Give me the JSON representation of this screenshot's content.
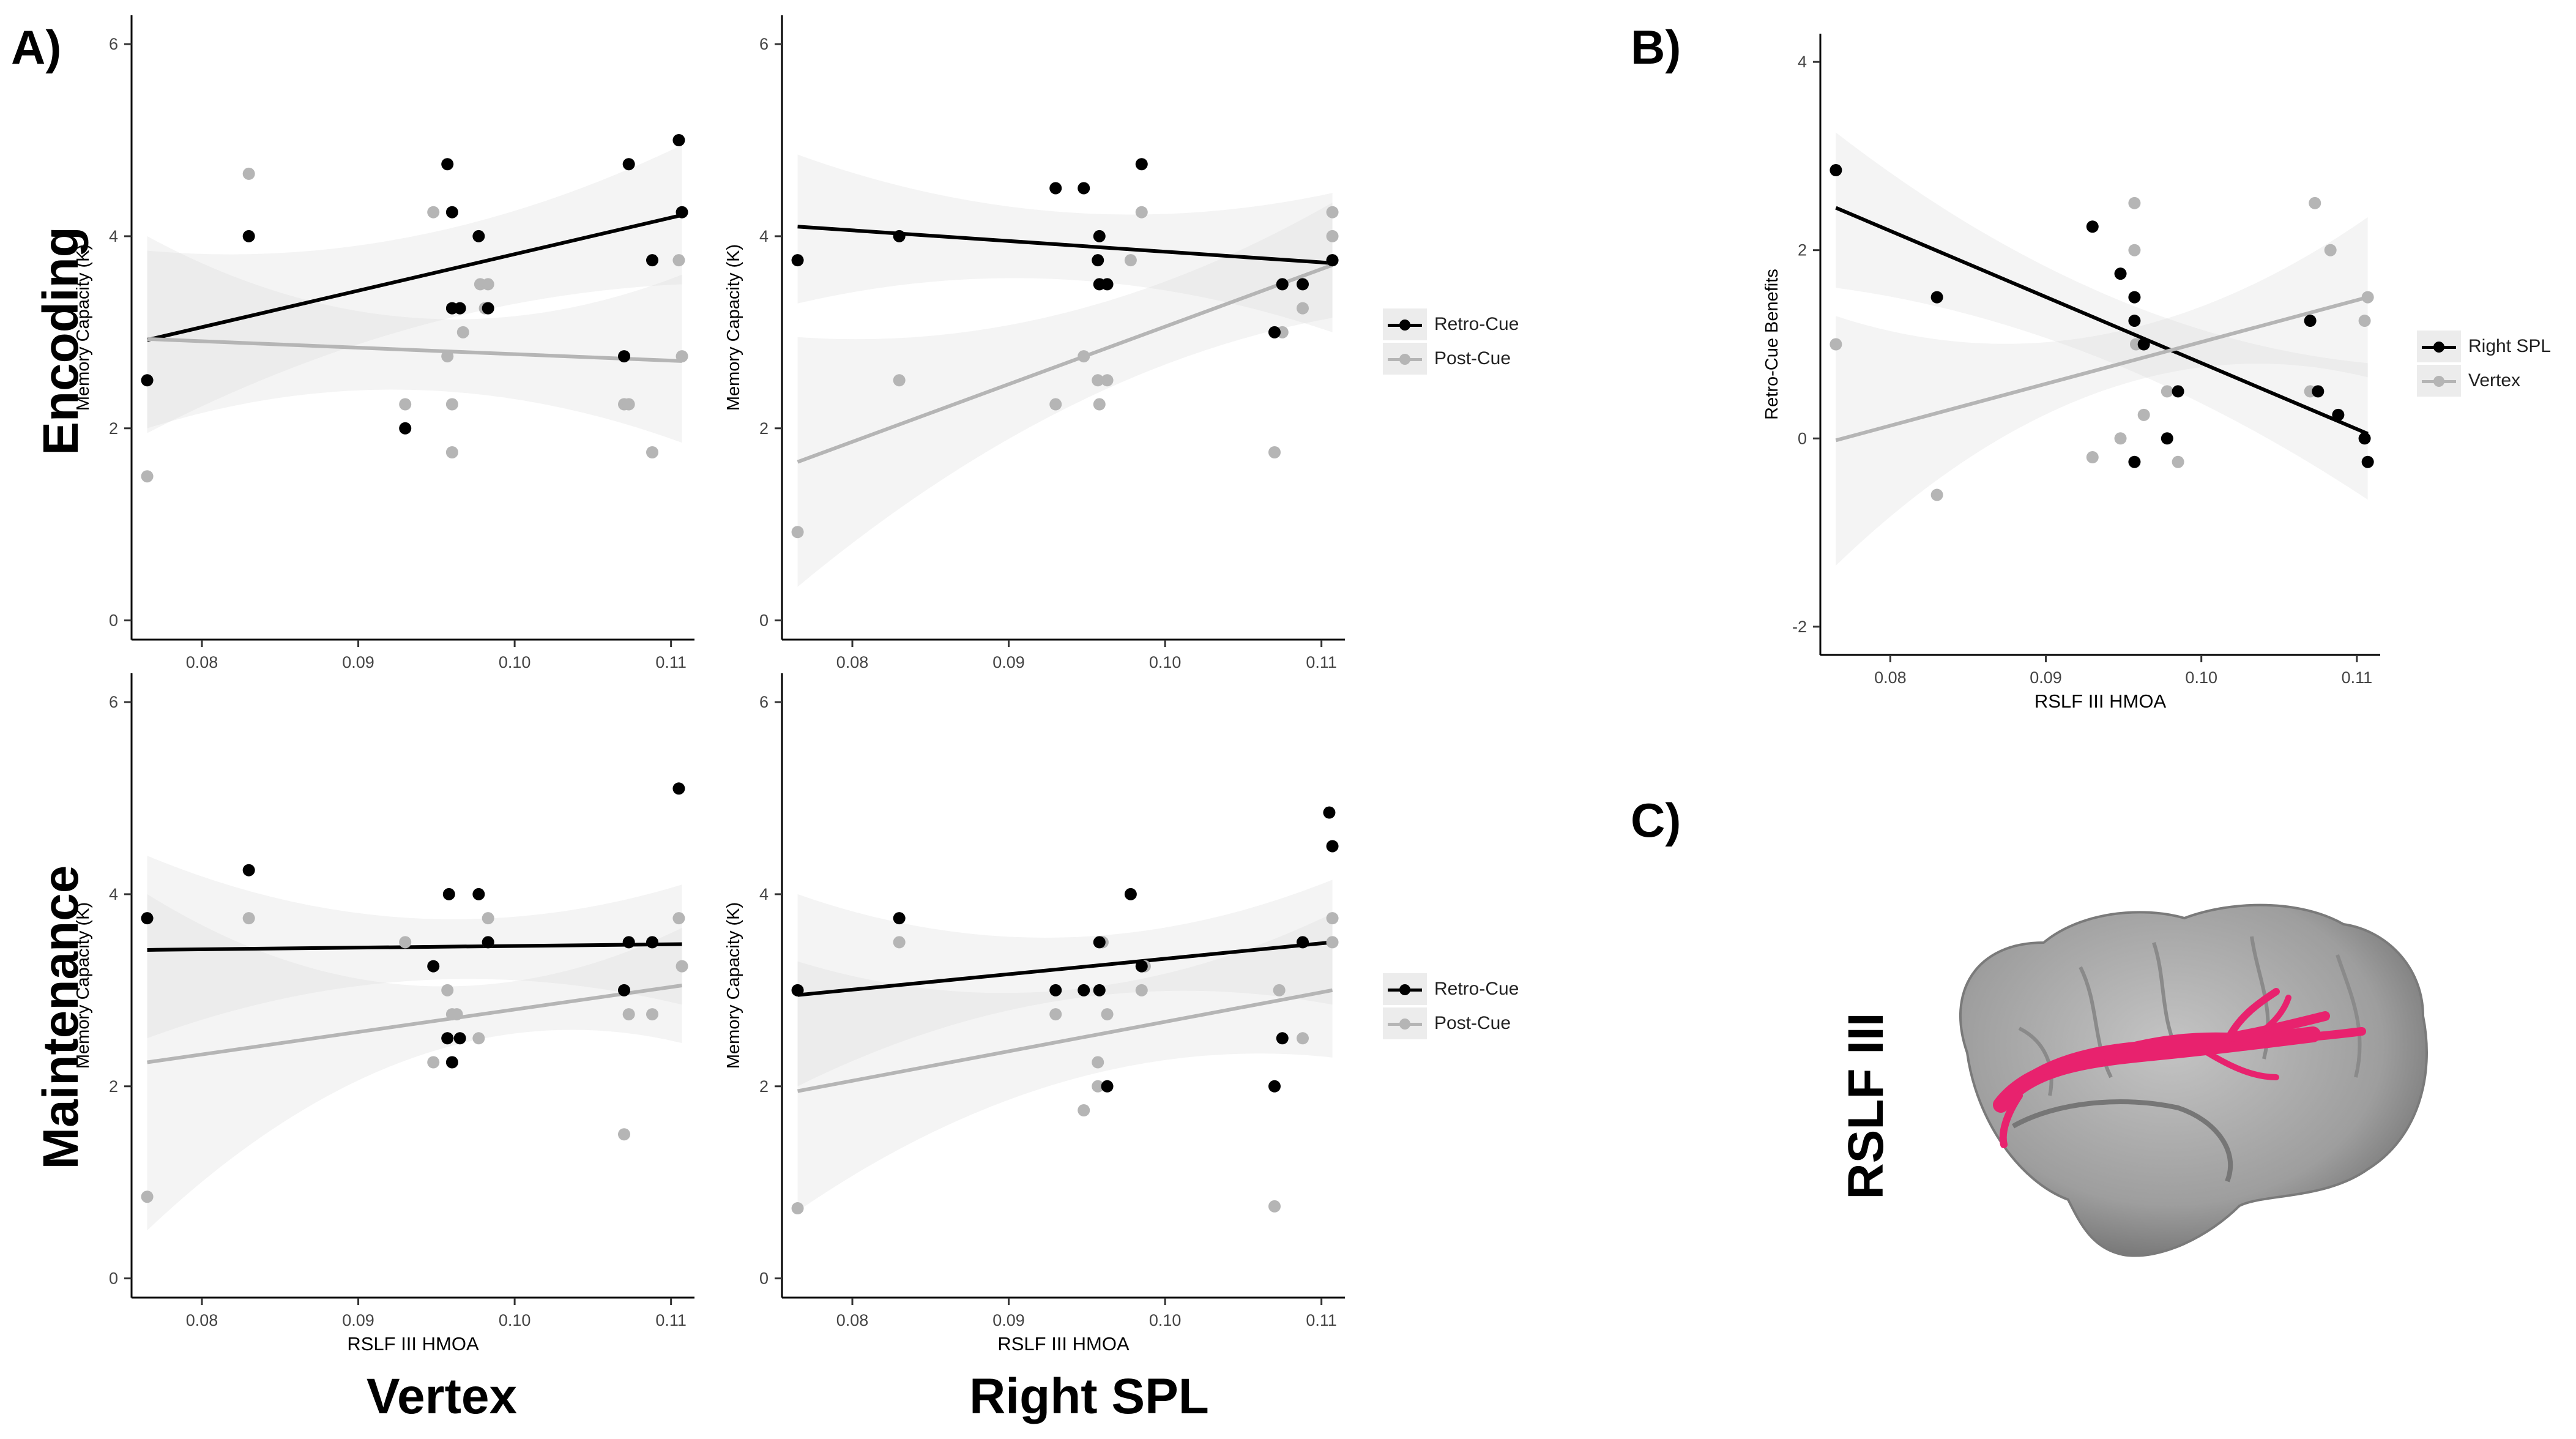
{
  "figure": {
    "panel_labels": {
      "a": "A)",
      "b": "B)",
      "c": "C)"
    },
    "row_labels": {
      "encoding": "Encoding",
      "maintenance": "Maintenance"
    },
    "column_labels": {
      "vertex": "Vertex",
      "right_spl": "Right SPL"
    },
    "tract_label": "RSLF III",
    "legend_enc": [
      "Retro-Cue",
      "Post-Cue"
    ],
    "legend_maint": [
      "Retro-Cue",
      "Post-Cue"
    ],
    "legend_b": [
      "Right SPL",
      "Vertex"
    ],
    "colors": {
      "black_series": "#000000",
      "gray_series": "#b5b5b5",
      "ribbon": "#e9e9e9",
      "tract": "#e8226e",
      "brain": "#a8a8a8"
    },
    "image_c": "brain rendering with RSLF III tract"
  },
  "chart_data": [
    {
      "id": "enc-vertex",
      "type": "scatter",
      "title": "",
      "xlabel": "",
      "ylabel": "Memory Capacity (K)",
      "xlim": [
        0.0755,
        0.1115
      ],
      "ylim": [
        -0.2,
        6.3
      ],
      "xticks": [
        "0.08",
        "0.09",
        "0.10",
        "0.11"
      ],
      "yticks": [
        "0",
        "2",
        "4",
        "6"
      ],
      "series": [
        {
          "name": "Retro-Cue",
          "color": "#000000",
          "points": [
            [
              0.0765,
              2.5
            ],
            [
              0.083,
              4.0
            ],
            [
              0.093,
              2.0
            ],
            [
              0.0957,
              4.75
            ],
            [
              0.096,
              4.25
            ],
            [
              0.096,
              3.25
            ],
            [
              0.0965,
              3.25
            ],
            [
              0.0977,
              4.0
            ],
            [
              0.0983,
              3.25
            ],
            [
              0.1073,
              4.75
            ],
            [
              0.107,
              2.75
            ],
            [
              0.1088,
              3.75
            ],
            [
              0.1105,
              5.0
            ],
            [
              0.1107,
              4.25
            ]
          ],
          "fit": [
            [
              0.0765,
              2.92
            ],
            [
              0.1107,
              4.22
            ]
          ],
          "ribbon": [
            [
              0.0765,
              1.95,
              3.85
            ],
            [
              0.0935,
              3.05,
              4.0
            ],
            [
              0.1107,
              3.5,
              4.95
            ]
          ]
        },
        {
          "name": "Post-Cue",
          "color": "#b5b5b5",
          "points": [
            [
              0.0765,
              1.5
            ],
            [
              0.083,
              4.65
            ],
            [
              0.093,
              2.25
            ],
            [
              0.0948,
              4.25
            ],
            [
              0.0957,
              2.75
            ],
            [
              0.096,
              1.75
            ],
            [
              0.096,
              2.25
            ],
            [
              0.0967,
              3.0
            ],
            [
              0.0978,
              3.5
            ],
            [
              0.0983,
              3.5
            ],
            [
              0.0981,
              3.25
            ],
            [
              0.107,
              2.25
            ],
            [
              0.1073,
              2.25
            ],
            [
              0.1088,
              1.75
            ],
            [
              0.1105,
              3.75
            ],
            [
              0.1107,
              2.75
            ]
          ],
          "fit": [
            [
              0.0765,
              2.93
            ],
            [
              0.1107,
              2.7
            ]
          ],
          "ribbon": [
            [
              0.0765,
              2.0,
              4.0
            ],
            [
              0.0935,
              2.4,
              3.15
            ],
            [
              0.1107,
              1.85,
              3.6
            ]
          ]
        }
      ]
    },
    {
      "id": "enc-spl",
      "type": "scatter",
      "title": "",
      "xlabel": "",
      "ylabel": "Memory Capacity (K)",
      "xlim": [
        0.0755,
        0.1115
      ],
      "ylim": [
        -0.2,
        6.3
      ],
      "xticks": [
        "0.08",
        "0.09",
        "0.10",
        "0.11"
      ],
      "yticks": [
        "0",
        "2",
        "4",
        "6"
      ],
      "series": [
        {
          "name": "Retro-Cue",
          "color": "#000000",
          "points": [
            [
              0.0765,
              3.75
            ],
            [
              0.083,
              4.0
            ],
            [
              0.093,
              4.5
            ],
            [
              0.0948,
              4.5
            ],
            [
              0.0957,
              3.75
            ],
            [
              0.0958,
              4.0
            ],
            [
              0.0958,
              3.5
            ],
            [
              0.0963,
              3.5
            ],
            [
              0.0985,
              4.75
            ],
            [
              0.107,
              3.0
            ],
            [
              0.1075,
              3.5
            ],
            [
              0.1088,
              3.5
            ],
            [
              0.1107,
              3.75
            ]
          ],
          "fit": [
            [
              0.0765,
              4.1
            ],
            [
              0.1107,
              3.72
            ]
          ],
          "ribbon": [
            [
              0.0765,
              3.3,
              4.85
            ],
            [
              0.0935,
              3.55,
              4.25
            ],
            [
              0.1107,
              3.0,
              4.45
            ]
          ]
        },
        {
          "name": "Post-Cue",
          "color": "#b5b5b5",
          "points": [
            [
              0.0765,
              0.92
            ],
            [
              0.083,
              2.5
            ],
            [
              0.093,
              2.25
            ],
            [
              0.0948,
              2.75
            ],
            [
              0.0957,
              2.5
            ],
            [
              0.0958,
              2.25
            ],
            [
              0.0963,
              2.5
            ],
            [
              0.0978,
              3.75
            ],
            [
              0.0985,
              4.25
            ],
            [
              0.107,
              1.75
            ],
            [
              0.1075,
              3.0
            ],
            [
              0.1088,
              3.25
            ],
            [
              0.1107,
              4.25
            ],
            [
              0.1107,
              4.0
            ],
            [
              0.1107,
              3.75
            ]
          ],
          "fit": [
            [
              0.0765,
              1.65
            ],
            [
              0.1107,
              3.7
            ]
          ],
          "ribbon": [
            [
              0.0765,
              0.35,
              2.95
            ],
            [
              0.0935,
              2.2,
              3.2
            ],
            [
              0.1107,
              3.15,
              4.35
            ]
          ]
        }
      ]
    },
    {
      "id": "maint-vertex",
      "type": "scatter",
      "title": "",
      "xlabel": "RSLF III HMOA",
      "ylabel": "Memory Capacity (K)",
      "xlim": [
        0.0755,
        0.1115
      ],
      "ylim": [
        -0.2,
        6.3
      ],
      "xticks": [
        "0.08",
        "0.09",
        "0.10",
        "0.11"
      ],
      "yticks": [
        "0",
        "2",
        "4",
        "6"
      ],
      "series": [
        {
          "name": "Retro-Cue",
          "color": "#000000",
          "points": [
            [
              0.0765,
              3.75
            ],
            [
              0.083,
              4.25
            ],
            [
              0.0948,
              3.25
            ],
            [
              0.0957,
              2.5
            ],
            [
              0.0958,
              4.0
            ],
            [
              0.096,
              2.25
            ],
            [
              0.0965,
              2.5
            ],
            [
              0.0977,
              4.0
            ],
            [
              0.0983,
              3.5
            ],
            [
              0.107,
              3.0
            ],
            [
              0.1073,
              3.5
            ],
            [
              0.1088,
              3.5
            ],
            [
              0.1105,
              5.1
            ]
          ],
          "fit": [
            [
              0.0765,
              3.42
            ],
            [
              0.1107,
              3.48
            ]
          ],
          "ribbon": [
            [
              0.0765,
              2.5,
              4.4
            ],
            [
              0.0935,
              3.1,
              3.75
            ],
            [
              0.1107,
              2.85,
              4.1
            ]
          ]
        },
        {
          "name": "Post-Cue",
          "color": "#b5b5b5",
          "points": [
            [
              0.0765,
              0.85
            ],
            [
              0.083,
              3.75
            ],
            [
              0.093,
              3.5
            ],
            [
              0.0948,
              2.25
            ],
            [
              0.0957,
              3.0
            ],
            [
              0.0957,
              2.5
            ],
            [
              0.096,
              2.75
            ],
            [
              0.0963,
              2.75
            ],
            [
              0.0977,
              2.5
            ],
            [
              0.0983,
              3.75
            ],
            [
              0.0983,
              3.5
            ],
            [
              0.107,
              1.5
            ],
            [
              0.1073,
              2.75
            ],
            [
              0.1088,
              2.75
            ],
            [
              0.1105,
              3.75
            ],
            [
              0.1107,
              3.25
            ]
          ],
          "fit": [
            [
              0.0765,
              2.25
            ],
            [
              0.1107,
              3.05
            ]
          ],
          "ribbon": [
            [
              0.0765,
              0.5,
              4.0
            ],
            [
              0.0935,
              2.3,
              3.05
            ],
            [
              0.1107,
              2.45,
              3.65
            ]
          ]
        }
      ]
    },
    {
      "id": "maint-spl",
      "type": "scatter",
      "title": "",
      "xlabel": "RSLF III HMOA",
      "ylabel": "Memory Capacity (K)",
      "xlim": [
        0.0755,
        0.1115
      ],
      "ylim": [
        -0.2,
        6.3
      ],
      "xticks": [
        "0.08",
        "0.09",
        "0.10",
        "0.11"
      ],
      "yticks": [
        "0",
        "2",
        "4",
        "6"
      ],
      "series": [
        {
          "name": "Retro-Cue",
          "color": "#000000",
          "points": [
            [
              0.0765,
              3.0
            ],
            [
              0.083,
              3.75
            ],
            [
              0.093,
              3.0
            ],
            [
              0.0948,
              3.0
            ],
            [
              0.0958,
              3.5
            ],
            [
              0.0958,
              3.0
            ],
            [
              0.0963,
              2.0
            ],
            [
              0.0978,
              4.0
            ],
            [
              0.0985,
              3.25
            ],
            [
              0.107,
              2.0
            ],
            [
              0.1075,
              2.5
            ],
            [
              0.1088,
              3.5
            ],
            [
              0.1105,
              4.85
            ],
            [
              0.1107,
              4.5
            ]
          ],
          "fit": [
            [
              0.0765,
              2.95
            ],
            [
              0.1107,
              3.5
            ]
          ],
          "ribbon": [
            [
              0.0765,
              2.0,
              4.0
            ],
            [
              0.0935,
              2.9,
              3.55
            ],
            [
              0.1107,
              2.85,
              4.15
            ]
          ]
        },
        {
          "name": "Post-Cue",
          "color": "#b5b5b5",
          "points": [
            [
              0.0765,
              0.73
            ],
            [
              0.083,
              3.5
            ],
            [
              0.093,
              2.75
            ],
            [
              0.0948,
              1.75
            ],
            [
              0.0957,
              2.25
            ],
            [
              0.0957,
              2.0
            ],
            [
              0.096,
              3.5
            ],
            [
              0.0963,
              2.75
            ],
            [
              0.0985,
              3.0
            ],
            [
              0.0987,
              3.25
            ],
            [
              0.107,
              0.75
            ],
            [
              0.1073,
              3.0
            ],
            [
              0.1088,
              2.5
            ],
            [
              0.1107,
              3.75
            ],
            [
              0.1107,
              3.5
            ]
          ],
          "fit": [
            [
              0.0765,
              1.95
            ],
            [
              0.1107,
              3.0
            ]
          ],
          "ribbon": [
            [
              0.0765,
              0.7,
              3.3
            ],
            [
              0.0935,
              2.05,
              3.0
            ],
            [
              0.1107,
              2.3,
              3.8
            ]
          ]
        }
      ]
    },
    {
      "id": "b-benefits",
      "type": "scatter",
      "title": "",
      "xlabel": "RSLF III HMOA",
      "ylabel": "Retro-Cue Benefits",
      "xlim": [
        0.0755,
        0.1115
      ],
      "ylim": [
        -2.3,
        4.3
      ],
      "xticks": [
        "0.08",
        "0.09",
        "0.10",
        "0.11"
      ],
      "yticks": [
        "-2",
        "0",
        "2",
        "4"
      ],
      "series": [
        {
          "name": "Right SPL",
          "color": "#000000",
          "points": [
            [
              0.0765,
              2.85
            ],
            [
              0.083,
              1.5
            ],
            [
              0.093,
              2.25
            ],
            [
              0.0948,
              1.75
            ],
            [
              0.0957,
              1.5
            ],
            [
              0.0957,
              1.25
            ],
            [
              0.0957,
              -0.25
            ],
            [
              0.0963,
              1.0
            ],
            [
              0.0978,
              0.0
            ],
            [
              0.0985,
              0.5
            ],
            [
              0.107,
              1.25
            ],
            [
              0.1075,
              0.5
            ],
            [
              0.1088,
              0.25
            ],
            [
              0.1105,
              0.0
            ],
            [
              0.1107,
              -0.25
            ]
          ],
          "fit": [
            [
              0.0765,
              2.45
            ],
            [
              0.1107,
              0.05
            ]
          ],
          "ribbon": [
            [
              0.0765,
              1.6,
              3.25
            ],
            [
              0.0935,
              0.85,
              1.55
            ],
            [
              0.1107,
              -0.65,
              0.8
            ]
          ]
        },
        {
          "name": "Vertex",
          "color": "#b5b5b5",
          "points": [
            [
              0.0765,
              1.0
            ],
            [
              0.083,
              -0.6
            ],
            [
              0.093,
              -0.2
            ],
            [
              0.0948,
              0.0
            ],
            [
              0.0957,
              2.5
            ],
            [
              0.0957,
              2.0
            ],
            [
              0.0957,
              1.5
            ],
            [
              0.0958,
              1.0
            ],
            [
              0.0963,
              0.25
            ],
            [
              0.0978,
              0.5
            ],
            [
              0.0985,
              -0.25
            ],
            [
              0.107,
              0.5
            ],
            [
              0.1073,
              2.5
            ],
            [
              0.1083,
              2.0
            ],
            [
              0.1105,
              1.25
            ],
            [
              0.1107,
              1.5
            ]
          ],
          "fit": [
            [
              0.0765,
              -0.02
            ],
            [
              0.1107,
              1.5
            ]
          ],
          "ribbon": [
            [
              0.0765,
              -1.35,
              1.3
            ],
            [
              0.0935,
              0.5,
              1.1
            ],
            [
              0.1107,
              0.65,
              2.35
            ]
          ]
        }
      ]
    }
  ]
}
